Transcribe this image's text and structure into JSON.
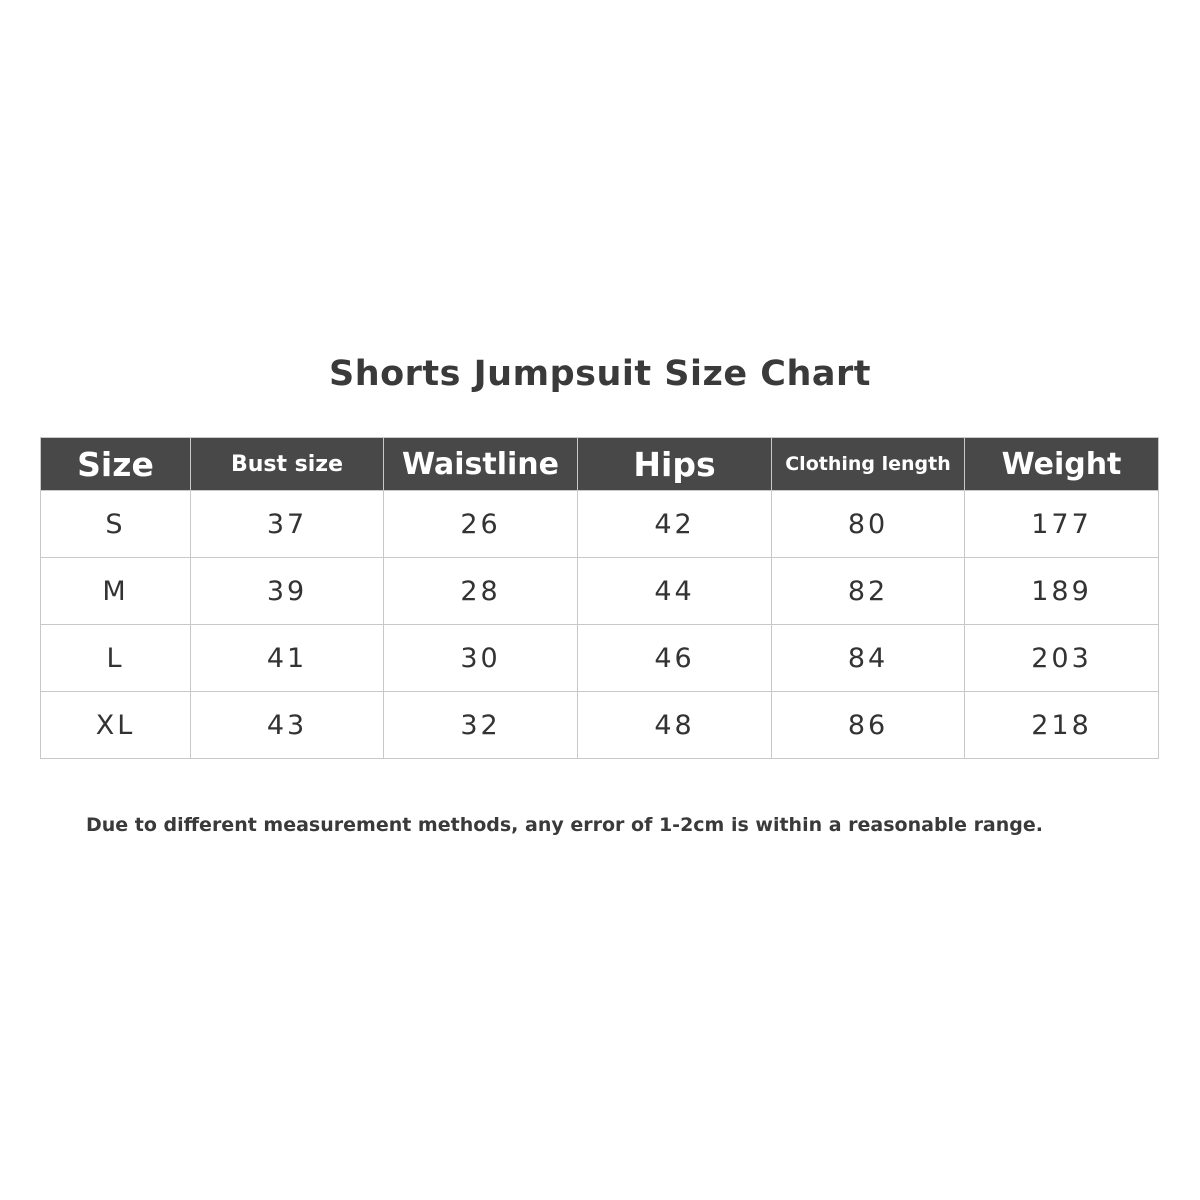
{
  "title": "Shorts Jumpsuit Size Chart",
  "table": {
    "headers": [
      "Size",
      "Bust size",
      "Waistline",
      "Hips",
      "Clothing length",
      "Weight"
    ],
    "rows": [
      [
        "S",
        "37",
        "26",
        "42",
        "80",
        "177"
      ],
      [
        "M",
        "39",
        "28",
        "44",
        "82",
        "189"
      ],
      [
        "L",
        "41",
        "30",
        "46",
        "84",
        "203"
      ],
      [
        "XL",
        "43",
        "32",
        "48",
        "86",
        "218"
      ]
    ]
  },
  "note": "Due to different measurement methods, any error of 1-2cm is within a reasonable range.",
  "colors": {
    "header_bg": "#484848",
    "header_text": "#ffffff",
    "border": "#c8c8c8"
  }
}
